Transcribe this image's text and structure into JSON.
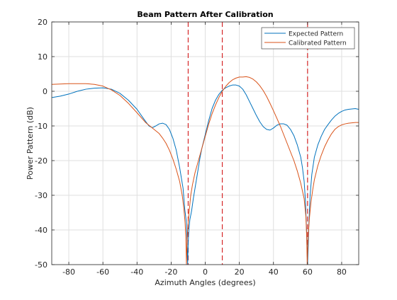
{
  "chart_data": {
    "type": "line",
    "title": "Beam Pattern After Calibration",
    "xlabel": "Azimuth Angles (degrees)",
    "ylabel": "Power Pattern (dB)",
    "xlim": [
      -90,
      90
    ],
    "ylim": [
      -50,
      20
    ],
    "xticks": [
      -80,
      -60,
      -40,
      -20,
      0,
      20,
      40,
      60,
      80
    ],
    "yticks": [
      20,
      10,
      0,
      -10,
      -20,
      -30,
      -40,
      -50
    ],
    "grid": true,
    "legend_position": "top-right",
    "vertical_markers": {
      "x": [
        -10,
        10,
        60
      ],
      "color": "#d62728",
      "style": "dashed"
    },
    "series": [
      {
        "name": "Expected Pattern",
        "color": "#0072bd",
        "points": [
          [
            -90,
            -1.8
          ],
          [
            -85,
            -1.4
          ],
          [
            -80,
            -0.8
          ],
          [
            -75,
            0.0
          ],
          [
            -70,
            0.6
          ],
          [
            -65,
            0.9
          ],
          [
            -60,
            1.0
          ],
          [
            -55,
            0.6
          ],
          [
            -50,
            -0.6
          ],
          [
            -45,
            -2.6
          ],
          [
            -40,
            -5.2
          ],
          [
            -36,
            -8.0
          ],
          [
            -33,
            -10.0
          ],
          [
            -31,
            -10.5
          ],
          [
            -29,
            -10.0
          ],
          [
            -27,
            -9.4
          ],
          [
            -25,
            -9.2
          ],
          [
            -23,
            -9.6
          ],
          [
            -21,
            -11.0
          ],
          [
            -19,
            -13.5
          ],
          [
            -17,
            -17.0
          ],
          [
            -15,
            -22.0
          ],
          [
            -13,
            -28.0
          ],
          [
            -12,
            -34.0
          ],
          [
            -11,
            -38.0
          ],
          [
            -10.6,
            -45.0
          ],
          [
            -10.3,
            -50.0
          ],
          [
            -10,
            -44.0
          ],
          [
            -9.6,
            -40.0
          ],
          [
            -9,
            -37.0
          ],
          [
            -8,
            -34.5
          ],
          [
            -7,
            -31.0
          ],
          [
            -6,
            -28.0
          ],
          [
            -5,
            -25.0
          ],
          [
            -4,
            -22.0
          ],
          [
            -3,
            -19.0
          ],
          [
            -2,
            -16.5
          ],
          [
            0,
            -12.5
          ],
          [
            2,
            -8.5
          ],
          [
            4,
            -5.0
          ],
          [
            6,
            -2.6
          ],
          [
            8,
            -0.9
          ],
          [
            10,
            0.3
          ],
          [
            12,
            1.0
          ],
          [
            14,
            1.5
          ],
          [
            16,
            1.8
          ],
          [
            18,
            1.8
          ],
          [
            20,
            1.5
          ],
          [
            22,
            0.6
          ],
          [
            24,
            -1.0
          ],
          [
            26,
            -3.0
          ],
          [
            28,
            -5.0
          ],
          [
            30,
            -7.0
          ],
          [
            32,
            -8.8
          ],
          [
            34,
            -10.2
          ],
          [
            36,
            -11.0
          ],
          [
            38,
            -11.2
          ],
          [
            40,
            -10.6
          ],
          [
            42,
            -9.8
          ],
          [
            44,
            -9.4
          ],
          [
            46,
            -9.4
          ],
          [
            48,
            -9.8
          ],
          [
            50,
            -11.0
          ],
          [
            52,
            -12.8
          ],
          [
            54,
            -15.5
          ],
          [
            56,
            -19.0
          ],
          [
            57,
            -22.0
          ],
          [
            58,
            -26.0
          ],
          [
            58.8,
            -32.0
          ],
          [
            59.4,
            -40.0
          ],
          [
            59.8,
            -47.0
          ],
          [
            60,
            -50.0
          ],
          [
            60.3,
            -46.0
          ],
          [
            60.8,
            -38.0
          ],
          [
            61.5,
            -30.0
          ],
          [
            62.5,
            -24.0
          ],
          [
            64,
            -19.0
          ],
          [
            66,
            -15.5
          ],
          [
            68,
            -13.0
          ],
          [
            70,
            -11.0
          ],
          [
            72,
            -9.6
          ],
          [
            74,
            -8.3
          ],
          [
            76,
            -7.2
          ],
          [
            78,
            -6.4
          ],
          [
            80,
            -5.8
          ],
          [
            82,
            -5.4
          ],
          [
            84,
            -5.2
          ],
          [
            86,
            -5.1
          ],
          [
            88,
            -5.0
          ],
          [
            90,
            -5.2
          ]
        ]
      },
      {
        "name": "Calibrated Pattern",
        "color": "#d95319",
        "points": [
          [
            -90,
            2.0
          ],
          [
            -85,
            2.1
          ],
          [
            -80,
            2.2
          ],
          [
            -75,
            2.2
          ],
          [
            -70,
            2.2
          ],
          [
            -65,
            2.0
          ],
          [
            -60,
            1.5
          ],
          [
            -55,
            0.4
          ],
          [
            -50,
            -1.2
          ],
          [
            -45,
            -3.5
          ],
          [
            -40,
            -6.2
          ],
          [
            -35,
            -9.0
          ],
          [
            -30,
            -11.0
          ],
          [
            -27,
            -12.2
          ],
          [
            -25,
            -13.5
          ],
          [
            -23,
            -15.0
          ],
          [
            -21,
            -17.0
          ],
          [
            -19,
            -19.5
          ],
          [
            -17,
            -22.5
          ],
          [
            -15,
            -26.0
          ],
          [
            -13.5,
            -30.0
          ],
          [
            -12.5,
            -34.0
          ],
          [
            -11.8,
            -38.0
          ],
          [
            -11.4,
            -42.0
          ],
          [
            -11,
            -50.0
          ],
          [
            -10.7,
            -44.0
          ],
          [
            -10.3,
            -40.0
          ],
          [
            -10,
            -38.0
          ],
          [
            -9.5,
            -35.0
          ],
          [
            -8.5,
            -30.0
          ],
          [
            -7.5,
            -27.0
          ],
          [
            -6,
            -23.5
          ],
          [
            -4,
            -20.0
          ],
          [
            -2,
            -16.5
          ],
          [
            0,
            -13.0
          ],
          [
            2,
            -9.5
          ],
          [
            4,
            -6.5
          ],
          [
            6,
            -4.0
          ],
          [
            8,
            -1.8
          ],
          [
            10,
            0.0
          ],
          [
            12,
            1.4
          ],
          [
            14,
            2.5
          ],
          [
            16,
            3.3
          ],
          [
            18,
            3.8
          ],
          [
            20,
            4.1
          ],
          [
            22,
            4.1
          ],
          [
            24,
            4.2
          ],
          [
            26,
            4.0
          ],
          [
            28,
            3.5
          ],
          [
            30,
            2.7
          ],
          [
            32,
            1.6
          ],
          [
            34,
            0.2
          ],
          [
            36,
            -1.5
          ],
          [
            38,
            -3.5
          ],
          [
            40,
            -5.6
          ],
          [
            42,
            -7.8
          ],
          [
            44,
            -10.0
          ],
          [
            46,
            -12.5
          ],
          [
            48,
            -15.0
          ],
          [
            50,
            -17.5
          ],
          [
            52,
            -20.0
          ],
          [
            54,
            -23.0
          ],
          [
            56,
            -26.5
          ],
          [
            58,
            -31.0
          ],
          [
            59,
            -36.0
          ],
          [
            59.5,
            -42.0
          ],
          [
            59.8,
            -50.0
          ],
          [
            60.2,
            -44.0
          ],
          [
            60.6,
            -40.0
          ],
          [
            61.2,
            -36.0
          ],
          [
            62,
            -32.0
          ],
          [
            63,
            -28.5
          ],
          [
            64,
            -25.5
          ],
          [
            66,
            -21.5
          ],
          [
            68,
            -18.5
          ],
          [
            70,
            -16.0
          ],
          [
            72,
            -14.0
          ],
          [
            74,
            -12.3
          ],
          [
            76,
            -11.0
          ],
          [
            78,
            -10.2
          ],
          [
            80,
            -9.7
          ],
          [
            82,
            -9.4
          ],
          [
            84,
            -9.2
          ],
          [
            86,
            -9.1
          ],
          [
            88,
            -9.0
          ],
          [
            90,
            -9.0
          ]
        ]
      }
    ]
  }
}
